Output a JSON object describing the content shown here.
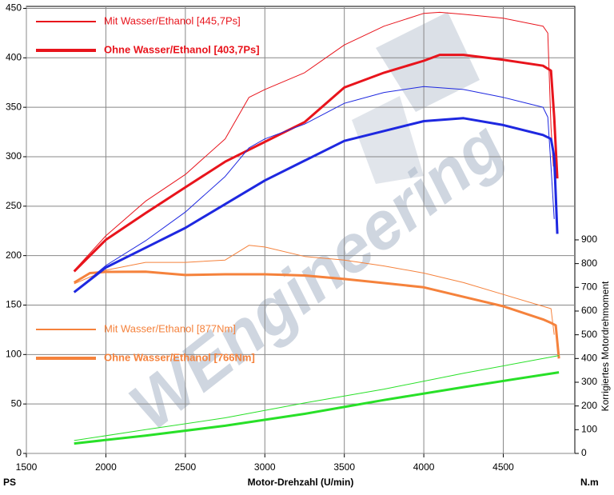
{
  "chart_data": {
    "type": "line",
    "watermark": "WEngineering",
    "x_label": "Motor-Drehzahl (U/min)",
    "y_label": "PS",
    "y2_unit": "N.m",
    "y2_label": "Korrigiertes Motordrehmoment",
    "xlim": [
      1500,
      4950
    ],
    "xticks": [
      1500,
      2000,
      2500,
      3000,
      3500,
      4000,
      4500
    ],
    "ylim": [
      0,
      452
    ],
    "yticks": [
      0,
      50,
      100,
      150,
      200,
      250,
      300,
      350,
      400,
      450
    ],
    "y2lim": [
      0,
      1884
    ],
    "y2ticks": [
      0,
      100,
      200,
      300,
      400,
      500,
      600,
      700,
      800,
      900
    ],
    "grid": true,
    "series": [
      {
        "name": "Mit Wasser/Ethanol [445,7Ps]",
        "color": "#e8141c",
        "width": 1,
        "x": [
          1800,
          2000,
          2250,
          2500,
          2750,
          2900,
          3000,
          3250,
          3500,
          3750,
          4000,
          4100,
          4250,
          4500,
          4750,
          4780,
          4800,
          4815
        ],
        "values": [
          185,
          220,
          255,
          282,
          318,
          360,
          368,
          385,
          413,
          432,
          445,
          446,
          444,
          440,
          432,
          425,
          330,
          290
        ]
      },
      {
        "name": "Ohne Wasser/Ethanol [403,7Ps]",
        "color": "#e8141c",
        "width": 3,
        "x": [
          1800,
          2000,
          2250,
          2500,
          2750,
          3000,
          3250,
          3500,
          3750,
          4000,
          4100,
          4250,
          4500,
          4750,
          4800,
          4820,
          4840
        ],
        "values": [
          184,
          216,
          243,
          269,
          295,
          315,
          335,
          370,
          385,
          397,
          403,
          403,
          398,
          392,
          387,
          340,
          278
        ]
      },
      {
        "name": "Mit Wasser/Ethanol [877Nm]",
        "color": "#f5823c",
        "width": 1,
        "axis": "y2",
        "x": [
          1800,
          2000,
          2250,
          2500,
          2750,
          2900,
          3000,
          3250,
          3500,
          3750,
          4000,
          4250,
          4500,
          4750,
          4800,
          4820
        ],
        "values": [
          715,
          772,
          805,
          805,
          815,
          877,
          870,
          830,
          815,
          790,
          760,
          720,
          670,
          620,
          610,
          500
        ]
      },
      {
        "name": "Ohne Wasser/Ethanol [766Nm]",
        "color": "#f5823c",
        "width": 3,
        "axis": "y2",
        "x": [
          1800,
          1900,
          2000,
          2250,
          2500,
          2750,
          3000,
          3250,
          3500,
          3750,
          4000,
          4250,
          4500,
          4750,
          4800,
          4830,
          4850
        ],
        "values": [
          720,
          760,
          765,
          766,
          752,
          755,
          755,
          750,
          735,
          718,
          700,
          660,
          620,
          565,
          550,
          540,
          400
        ]
      },
      {
        "color": "#1e28e0",
        "width": 1,
        "x": [
          1800,
          2000,
          2250,
          2500,
          2750,
          2900,
          3000,
          3250,
          3500,
          3750,
          4000,
          4250,
          4500,
          4750,
          4780,
          4800,
          4820
        ],
        "values": [
          163,
          190,
          215,
          244,
          280,
          309,
          318,
          333,
          354,
          365,
          371,
          368,
          360,
          350,
          340,
          290,
          237
        ]
      },
      {
        "color": "#1e28e0",
        "width": 3,
        "x": [
          1800,
          2000,
          2250,
          2500,
          2750,
          3000,
          3250,
          3500,
          3750,
          4000,
          4250,
          4500,
          4750,
          4800,
          4820,
          4840
        ],
        "values": [
          163,
          188,
          208,
          228,
          252,
          276,
          296,
          316,
          326,
          336,
          339,
          332,
          322,
          318,
          300,
          222
        ]
      },
      {
        "color": "#28e028",
        "width": 1,
        "x": [
          1800,
          2250,
          2750,
          3250,
          3750,
          4250,
          4850
        ],
        "values": [
          13,
          24,
          36,
          51,
          65,
          81,
          99
        ]
      },
      {
        "color": "#28e028",
        "width": 3,
        "x": [
          1800,
          2250,
          2750,
          3250,
          3750,
          4250,
          4850
        ],
        "values": [
          10,
          18,
          28,
          40,
          54,
          67,
          82
        ]
      }
    ]
  }
}
